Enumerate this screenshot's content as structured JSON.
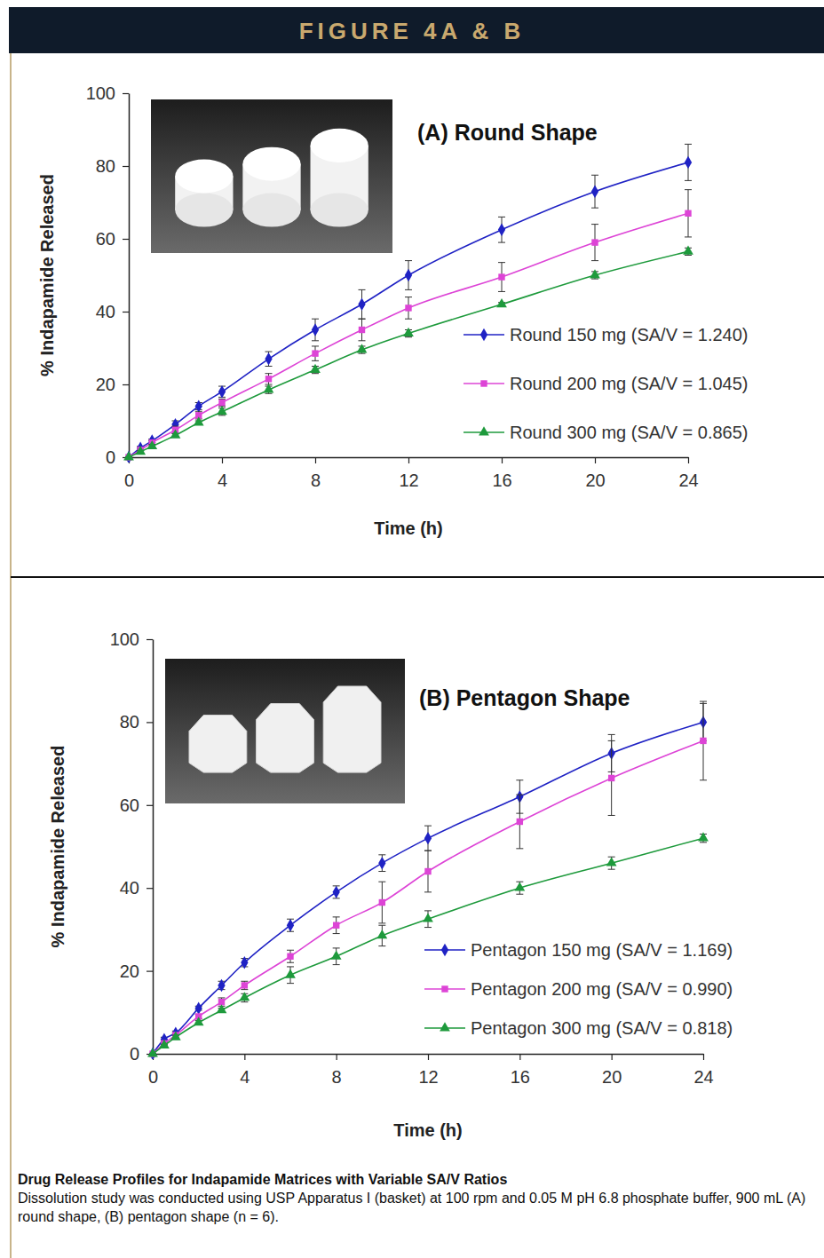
{
  "header": {
    "title": "FIGURE 4A & B"
  },
  "chart_data": [
    {
      "type": "line",
      "title": "(A) Round Shape",
      "x_label": "Time (h)",
      "y_label": "% Indapamide Released",
      "x": [
        0,
        0.5,
        1,
        2,
        3,
        4,
        6,
        8,
        10,
        12,
        16,
        20,
        24
      ],
      "xlim": [
        0,
        24
      ],
      "xticks": [
        0,
        4,
        8,
        12,
        16,
        20,
        24
      ],
      "ylim": [
        0,
        100
      ],
      "yticks": [
        0,
        20,
        40,
        60,
        80,
        100
      ],
      "grid": false,
      "legend": "lower right",
      "series": [
        {
          "name": "Round 150 mg (SA/V = 1.240)",
          "color": "#1f22c4",
          "marker": "diamond",
          "values": [
            0,
            2.5,
            4.5,
            9,
            14,
            18,
            27,
            35,
            42,
            50,
            62.5,
            73,
            81
          ],
          "errors": [
            0,
            0.5,
            0.5,
            1,
            1,
            1.5,
            2,
            3,
            4,
            4,
            3.5,
            4.5,
            5
          ]
        },
        {
          "name": "Round 200 mg (SA/V = 1.045)",
          "color": "#dd44d6",
          "marker": "square",
          "values": [
            0,
            2,
            4,
            7.5,
            11.5,
            15,
            21.5,
            28.5,
            35,
            41,
            49.5,
            59,
            67
          ],
          "errors": [
            0,
            0.5,
            0.5,
            1,
            1,
            1,
            1.5,
            2,
            3,
            3,
            4,
            5,
            6.5
          ]
        },
        {
          "name": "Round 300 mg (SA/V = 0.865)",
          "color": "#1e9a3c",
          "marker": "triangle",
          "values": [
            0,
            1.5,
            3,
            6,
            9.5,
            12.5,
            18.5,
            24,
            29.5,
            34,
            42,
            50,
            56.5
          ],
          "errors": [
            0,
            0.3,
            0.5,
            0.5,
            0.5,
            1,
            1,
            1,
            1,
            1,
            0.5,
            1,
            1
          ]
        }
      ]
    },
    {
      "type": "line",
      "title": "(B) Pentagon Shape",
      "x_label": "Time (h)",
      "y_label": "% Indapamide Released",
      "x": [
        0,
        0.5,
        1,
        2,
        3,
        4,
        6,
        8,
        10,
        12,
        16,
        20,
        24
      ],
      "xlim": [
        0,
        24
      ],
      "xticks": [
        0,
        4,
        8,
        12,
        16,
        20,
        24
      ],
      "ylim": [
        0,
        100
      ],
      "yticks": [
        0,
        20,
        40,
        60,
        80,
        100
      ],
      "grid": false,
      "legend": "lower right",
      "series": [
        {
          "name": "Pentagon 150 mg (SA/V = 1.169)",
          "color": "#1f22c4",
          "marker": "diamond",
          "values": [
            0,
            3.5,
            5,
            11,
            16.5,
            22,
            31,
            39,
            46,
            52,
            62,
            72.5,
            80
          ],
          "errors": [
            0,
            0.5,
            0.5,
            0.5,
            1,
            1,
            1.5,
            1.5,
            2,
            3,
            4,
            4.5,
            4.5
          ]
        },
        {
          "name": "Pentagon 200 mg (SA/V = 0.990)",
          "color": "#dd44d6",
          "marker": "square",
          "values": [
            0,
            2.5,
            4.5,
            9,
            12.5,
            16.5,
            23.5,
            31,
            36.5,
            44,
            56,
            66.5,
            75.5
          ],
          "errors": [
            0,
            0.5,
            0.5,
            0.5,
            1,
            1,
            1.5,
            2,
            5,
            5,
            6.5,
            9,
            9.5
          ]
        },
        {
          "name": "Pentagon 300 mg (SA/V = 0.818)",
          "color": "#1e9a3c",
          "marker": "triangle",
          "values": [
            0,
            2,
            4,
            7.5,
            10.5,
            13.5,
            19,
            23.5,
            28.5,
            32.5,
            40,
            46,
            52
          ],
          "errors": [
            0,
            0.3,
            0.5,
            0.5,
            0.5,
            1,
            2,
            2,
            2.5,
            2,
            1.5,
            1.5,
            1
          ]
        }
      ]
    }
  ],
  "caption": {
    "title": "Drug Release Profiles for Indapamide Matrices with Variable SA/V Ratios",
    "text": "Dissolution study was conducted using USP Apparatus I (basket) at 100 rpm and 0.05 M pH 6.8 phosphate buffer, 900 mL (A) round shape, (B) pentagon shape (n = 6)."
  }
}
